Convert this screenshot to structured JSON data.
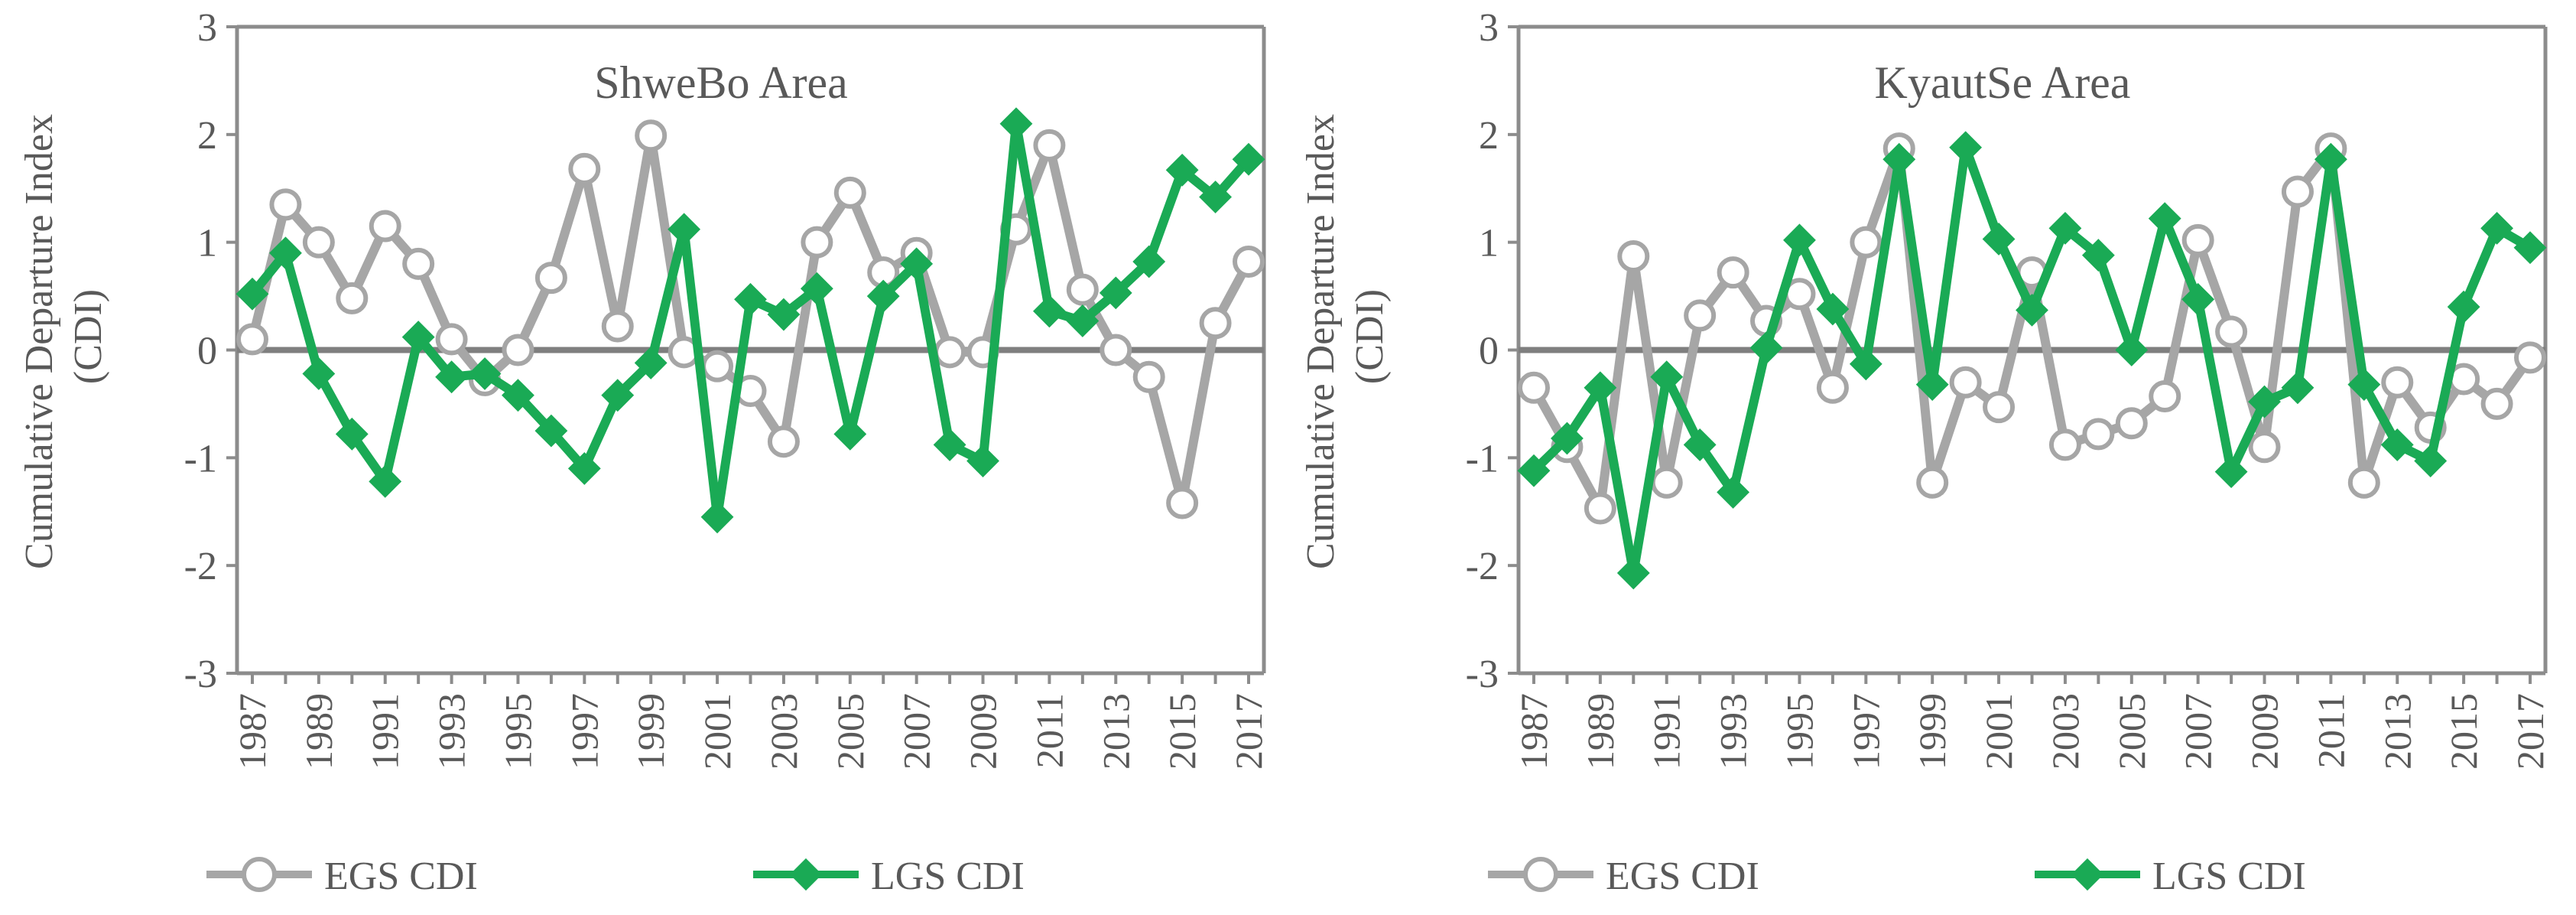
{
  "colors": {
    "egs": "#a6a6a6",
    "lgs": "#1aaa55",
    "axis": "#8c8c8c",
    "zero_line": "#7f7f7f",
    "text": "#595959",
    "marker_fill": "#ffffff"
  },
  "chart_data": [
    {
      "type": "line",
      "title": "ShweBo Area",
      "ylabel": "Cumulative Departure Index (CDI)",
      "ylabel_lines": [
        "Cumulative Departure Index",
        "(CDI)"
      ],
      "xlabel": "",
      "ylim": [
        -3,
        3
      ],
      "yticks": [
        "3",
        "2",
        "1",
        "0",
        "-1",
        "-2",
        "-3"
      ],
      "x": [
        1987,
        1988,
        1989,
        1990,
        1991,
        1992,
        1993,
        1994,
        1995,
        1996,
        1997,
        1998,
        1999,
        2000,
        2001,
        2002,
        2003,
        2004,
        2005,
        2006,
        2007,
        2008,
        2009,
        2010,
        2011,
        2012,
        2013,
        2014,
        2015,
        2016,
        2017
      ],
      "xtick_labels": [
        "1987",
        "1989",
        "1991",
        "1993",
        "1995",
        "1997",
        "1999",
        "2001",
        "2003",
        "2005",
        "2007",
        "2009",
        "2011",
        "2013",
        "2015",
        "2017"
      ],
      "legend_position": "bottom",
      "series": [
        {
          "name": "EGS CDI",
          "marker": "circle",
          "values": [
            0.1,
            1.35,
            1.0,
            0.48,
            1.15,
            0.8,
            0.1,
            -0.28,
            0.0,
            0.67,
            1.68,
            0.22,
            1.99,
            -0.02,
            -0.15,
            -0.38,
            -0.85,
            1.0,
            1.46,
            0.72,
            0.9,
            -0.02,
            -0.02,
            1.12,
            1.9,
            0.56,
            0.0,
            -0.25,
            -1.42,
            0.25,
            0.82
          ]
        },
        {
          "name": "LGS CDI",
          "marker": "diamond",
          "values": [
            0.52,
            0.9,
            -0.22,
            -0.78,
            -1.22,
            0.12,
            -0.25,
            -0.22,
            -0.42,
            -0.75,
            -1.1,
            -0.42,
            -0.12,
            1.12,
            -1.55,
            0.47,
            0.33,
            0.57,
            -0.78,
            0.5,
            0.8,
            -0.88,
            -1.03,
            2.1,
            0.36,
            0.27,
            0.53,
            0.82,
            1.67,
            1.42,
            1.77
          ]
        }
      ]
    },
    {
      "type": "line",
      "title": "KyautSe Area",
      "ylabel": "Cumulative Departure Index (CDI)",
      "ylabel_lines": [
        "Cumulative Departure Index",
        "(CDI)"
      ],
      "xlabel": "",
      "ylim": [
        -3,
        3
      ],
      "yticks": [
        "3",
        "2",
        "1",
        "0",
        "-1",
        "-2",
        "-3"
      ],
      "x": [
        1987,
        1988,
        1989,
        1990,
        1991,
        1992,
        1993,
        1994,
        1995,
        1996,
        1997,
        1998,
        1999,
        2000,
        2001,
        2002,
        2003,
        2004,
        2005,
        2006,
        2007,
        2008,
        2009,
        2010,
        2011,
        2012,
        2013,
        2014,
        2015,
        2016,
        2017
      ],
      "xtick_labels": [
        "1987",
        "1989",
        "1991",
        "1993",
        "1995",
        "1997",
        "1999",
        "2001",
        "2003",
        "2005",
        "2007",
        "2009",
        "2011",
        "2013",
        "2015",
        "2017"
      ],
      "legend_position": "bottom",
      "series": [
        {
          "name": "EGS CDI",
          "marker": "circle",
          "values": [
            -0.35,
            -0.9,
            -1.47,
            0.87,
            -1.23,
            0.32,
            0.72,
            0.27,
            0.52,
            -0.35,
            1.0,
            1.87,
            -1.23,
            -0.3,
            -0.53,
            0.72,
            -0.88,
            -0.78,
            -0.68,
            -0.43,
            1.02,
            0.17,
            -0.9,
            1.47,
            1.87,
            -1.23,
            -0.3,
            -0.72,
            -0.27,
            -0.5,
            -0.07
          ]
        },
        {
          "name": "LGS CDI",
          "marker": "diamond",
          "values": [
            -1.12,
            -0.82,
            -0.35,
            -2.07,
            -0.25,
            -0.88,
            -1.32,
            0.02,
            1.02,
            0.38,
            -0.13,
            1.77,
            -0.32,
            1.88,
            1.03,
            0.37,
            1.13,
            0.88,
            0.0,
            1.22,
            0.47,
            -1.13,
            -0.48,
            -0.35,
            1.77,
            -0.32,
            -0.88,
            -1.03,
            0.4,
            1.13,
            0.95
          ]
        }
      ]
    }
  ]
}
